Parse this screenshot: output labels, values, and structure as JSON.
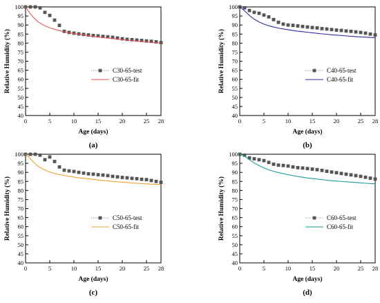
{
  "chart_data": [
    {
      "type": "line",
      "panel_label": "(a)",
      "xlabel": "Age (days)",
      "ylabel": "Relative Humidity (%)",
      "xlim": [
        0,
        28
      ],
      "ylim": [
        40,
        100
      ],
      "x_ticks": [
        0,
        5,
        10,
        15,
        20,
        25,
        28
      ],
      "y_ticks": [
        40,
        45,
        50,
        55,
        60,
        65,
        70,
        75,
        80,
        85,
        90,
        95,
        100
      ],
      "legend_position": "middle-right",
      "series": [
        {
          "name": "C30-65-test",
          "kind": "scatter",
          "color": "#555555",
          "x": [
            0,
            1,
            2,
            3,
            4,
            5,
            6,
            7,
            8,
            9,
            10,
            11,
            12,
            13,
            14,
            15,
            16,
            17,
            18,
            19,
            20,
            21,
            22,
            23,
            24,
            25,
            26,
            27,
            28
          ],
          "y": [
            100,
            100,
            100,
            99.5,
            97,
            95.3,
            92.7,
            89.8,
            86.5,
            85.9,
            85.5,
            85.1,
            84.8,
            84.5,
            84.2,
            84,
            83.7,
            83.5,
            83.2,
            82.8,
            82.4,
            82.1,
            81.9,
            81.7,
            81.5,
            81.2,
            81,
            80.7,
            80.3
          ]
        },
        {
          "name": "C30-65-fit",
          "kind": "line",
          "color": "#e8525a",
          "x": [
            0,
            0.5,
            1,
            1.5,
            2,
            2.5,
            3,
            4,
            5,
            6,
            7,
            8,
            9,
            10,
            11,
            12,
            13,
            14,
            15,
            16,
            17,
            18,
            19,
            20,
            21,
            22,
            23,
            24,
            25,
            26,
            27,
            28
          ],
          "y": [
            100,
            98,
            96.2,
            94.6,
            93.2,
            92,
            91,
            89.6,
            88.5,
            87.6,
            86.9,
            86.3,
            85.7,
            85.3,
            84.9,
            84.5,
            84.1,
            83.7,
            83.4,
            83.1,
            82.8,
            82.5,
            82.2,
            81.9,
            81.7,
            81.4,
            81.1,
            80.9,
            80.7,
            80.5,
            80.2,
            80
          ]
        }
      ]
    },
    {
      "type": "line",
      "panel_label": "(b)",
      "xlabel": "Age (days)",
      "ylabel": "Relative Humidity (%)",
      "xlim": [
        0,
        28
      ],
      "ylim": [
        40,
        100
      ],
      "x_ticks": [
        0,
        5,
        10,
        15,
        20,
        25,
        28
      ],
      "y_ticks": [
        40,
        45,
        50,
        55,
        60,
        65,
        70,
        75,
        80,
        85,
        90,
        95,
        100
      ],
      "legend_position": "middle-right",
      "series": [
        {
          "name": "C40-65-test",
          "kind": "scatter",
          "color": "#555555",
          "x": [
            0,
            1,
            2,
            3,
            4,
            5,
            6,
            7,
            8,
            9,
            10,
            11,
            12,
            13,
            14,
            15,
            16,
            17,
            18,
            19,
            20,
            21,
            22,
            23,
            24,
            25,
            26,
            27,
            28
          ],
          "y": [
            100,
            99.5,
            98,
            97,
            96.5,
            95.5,
            94.5,
            93,
            91.5,
            90.5,
            90,
            89.8,
            89.5,
            89.2,
            88.9,
            88.6,
            88.4,
            88,
            87.8,
            87.5,
            87.2,
            87,
            86.7,
            86.5,
            86.2,
            85.9,
            85.5,
            85,
            84.5
          ]
        },
        {
          "name": "C40-65-fit",
          "kind": "line",
          "color": "#2b2ba0",
          "x": [
            0,
            0.5,
            1,
            1.5,
            2,
            2.5,
            3,
            4,
            5,
            6,
            7,
            8,
            9,
            10,
            11,
            12,
            13,
            14,
            15,
            16,
            17,
            18,
            19,
            20,
            21,
            22,
            23,
            24,
            25,
            26,
            27,
            28
          ],
          "y": [
            100,
            99,
            97.8,
            96.5,
            95.3,
            94.2,
            93.2,
            91.7,
            90.5,
            89.6,
            88.9,
            88.3,
            87.8,
            87.4,
            87,
            86.6,
            86.3,
            86,
            85.7,
            85.4,
            85.1,
            84.9,
            84.6,
            84.4,
            84.2,
            84,
            83.8,
            83.6,
            83.4,
            83.3,
            83.1,
            83
          ]
        }
      ]
    },
    {
      "type": "line",
      "panel_label": "(c)",
      "xlabel": "Age (days)",
      "ylabel": "Relative Humidity (%)",
      "xlim": [
        0,
        28
      ],
      "ylim": [
        40,
        100
      ],
      "x_ticks": [
        0,
        5,
        10,
        15,
        20,
        25,
        28
      ],
      "y_ticks": [
        40,
        45,
        50,
        55,
        60,
        65,
        70,
        75,
        80,
        85,
        90,
        95,
        100
      ],
      "legend_position": "middle-right",
      "series": [
        {
          "name": "C50-65-test",
          "kind": "scatter",
          "color": "#555555",
          "x": [
            0,
            1,
            2,
            3,
            4,
            5,
            6,
            7,
            8,
            9,
            10,
            11,
            12,
            13,
            14,
            15,
            16,
            17,
            18,
            19,
            20,
            21,
            22,
            23,
            24,
            25,
            26,
            27,
            28
          ],
          "y": [
            100,
            100,
            100,
            99.5,
            97,
            98.5,
            96,
            93,
            91.2,
            90.8,
            90.5,
            90,
            89.6,
            89.2,
            89,
            88.7,
            88.5,
            88.2,
            87.8,
            87.5,
            87.2,
            87,
            86.7,
            86.5,
            86.2,
            86,
            85.5,
            85,
            84.5
          ]
        },
        {
          "name": "C50-65-fit",
          "kind": "line",
          "color": "#f0a030",
          "x": [
            0,
            0.5,
            1,
            1.5,
            2,
            2.5,
            3,
            4,
            5,
            6,
            7,
            8,
            9,
            10,
            11,
            12,
            13,
            14,
            15,
            16,
            17,
            18,
            19,
            20,
            21,
            22,
            23,
            24,
            25,
            26,
            27,
            28
          ],
          "y": [
            100,
            99,
            97.5,
            96,
            94.7,
            93.6,
            92.7,
            91.3,
            90.2,
            89.4,
            88.8,
            88.3,
            87.8,
            87.4,
            87,
            86.7,
            86.4,
            86.1,
            85.8,
            85.5,
            85.3,
            85,
            84.8,
            84.6,
            84.4,
            84.2,
            84,
            83.8,
            83.7,
            83.5,
            83.4,
            83.2
          ]
        }
      ]
    },
    {
      "type": "line",
      "panel_label": "(d)",
      "xlabel": "Age (days)",
      "ylabel": "Relative Humidity (%)",
      "xlim": [
        0,
        28
      ],
      "ylim": [
        40,
        100
      ],
      "x_ticks": [
        0,
        5,
        10,
        15,
        20,
        25,
        28
      ],
      "y_ticks": [
        40,
        45,
        50,
        55,
        60,
        65,
        70,
        75,
        80,
        85,
        90,
        95,
        100
      ],
      "legend_position": "middle-right",
      "series": [
        {
          "name": "C60-65-test",
          "kind": "scatter",
          "color": "#555555",
          "x": [
            0,
            1,
            2,
            3,
            4,
            5,
            6,
            7,
            8,
            9,
            10,
            11,
            12,
            13,
            14,
            15,
            16,
            17,
            18,
            19,
            20,
            21,
            22,
            23,
            24,
            25,
            26,
            27,
            28
          ],
          "y": [
            100,
            99.5,
            98,
            97.5,
            97,
            96.5,
            95.5,
            94.5,
            94,
            93.8,
            93.5,
            93,
            92.6,
            92.4,
            92.1,
            91.8,
            91.5,
            91.1,
            90.6,
            90.2,
            89.8,
            89.4,
            89,
            88.6,
            88.2,
            87.8,
            87.3,
            86.8,
            86.3
          ]
        },
        {
          "name": "C60-65-fit",
          "kind": "line",
          "color": "#1a9e9a",
          "x": [
            0,
            0.5,
            1,
            1.5,
            2,
            2.5,
            3,
            4,
            5,
            6,
            7,
            8,
            9,
            10,
            11,
            12,
            13,
            14,
            15,
            16,
            17,
            18,
            19,
            20,
            21,
            22,
            23,
            24,
            25,
            26,
            27,
            28
          ],
          "y": [
            100,
            99.6,
            98.9,
            98,
            97,
            96.1,
            95.2,
            93.7,
            92.5,
            91.4,
            90.6,
            89.9,
            89.3,
            88.7,
            88.2,
            87.7,
            87.3,
            86.9,
            86.6,
            86.3,
            86,
            85.7,
            85.4,
            85.2,
            85,
            84.8,
            84.6,
            84.4,
            84.2,
            84,
            83.8,
            83.7
          ]
        }
      ]
    }
  ]
}
